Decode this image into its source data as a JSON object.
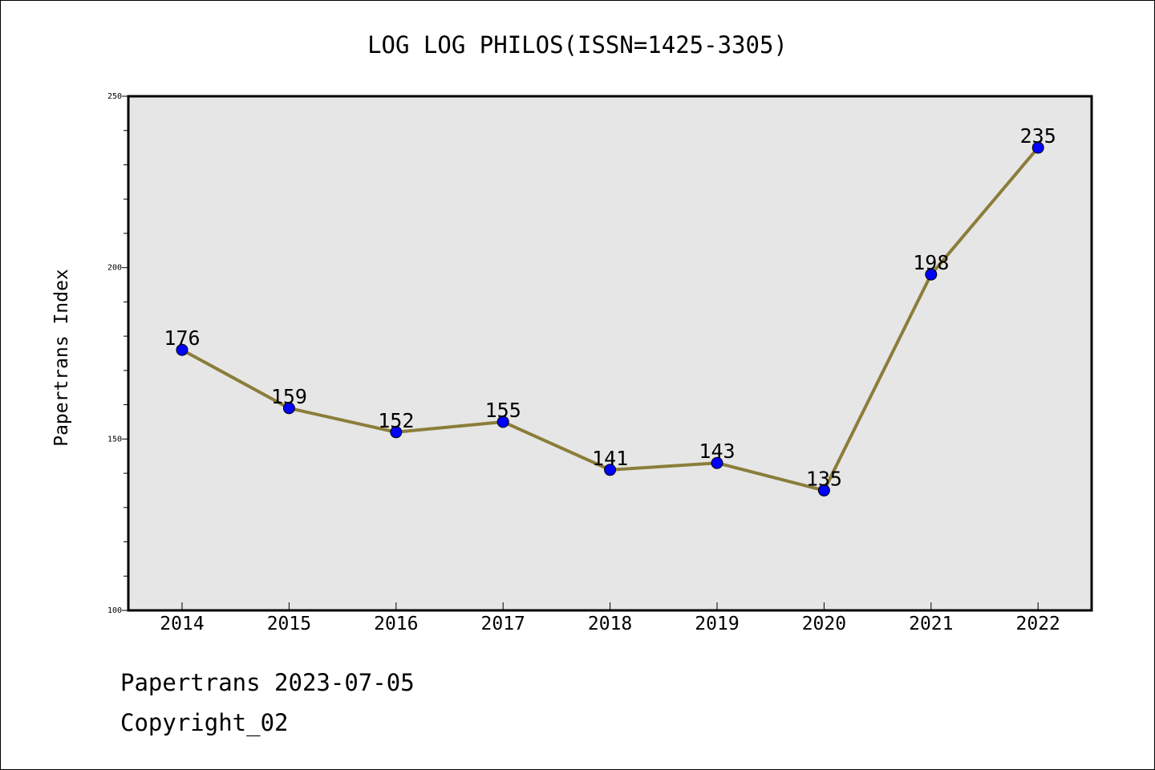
{
  "chart_data": {
    "type": "line",
    "title": "LOG LOG PHILOS(ISSN=1425-3305)",
    "xlabel": "",
    "ylabel": "Papertrans Index",
    "categories": [
      "2014",
      "2015",
      "2016",
      "2017",
      "2018",
      "2019",
      "2020",
      "2021",
      "2022"
    ],
    "series": [
      {
        "values": [
          176,
          159,
          152,
          155,
          141,
          143,
          135,
          198,
          235
        ]
      }
    ],
    "data_labels": [
      "176",
      "159",
      "152",
      "155",
      "141",
      "143",
      "135",
      "198",
      "235"
    ],
    "ylim": [
      100,
      250
    ],
    "yticks": [
      100,
      150,
      200,
      250
    ],
    "ytick_labels": [
      "100",
      "150",
      "200",
      "250"
    ],
    "grid": false,
    "legend": "none",
    "colors": {
      "line": "#8b7d3a",
      "marker": "#0000ff",
      "plot_background": "#e6e6e6"
    }
  },
  "footer": {
    "date_line": "Papertrans 2023-07-05",
    "copyright_line": "Copyright_02"
  }
}
